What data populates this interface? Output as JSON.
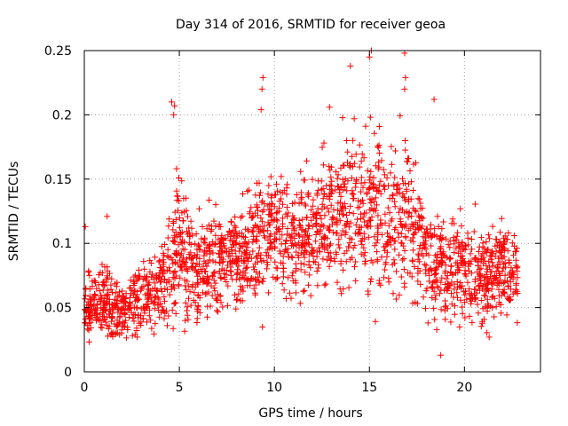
{
  "chart_data": {
    "type": "scatter",
    "title": "Day 314 of 2016, SRMTID for receiver geoa",
    "xlabel": "GPS time / hours",
    "ylabel": "SRMTID / TECUs",
    "xlim": [
      0,
      24
    ],
    "ylim": [
      0,
      0.25
    ],
    "xticks": [
      0,
      5,
      10,
      15,
      20
    ],
    "xtick_labels": [
      "0",
      "5",
      "10",
      "15",
      "20"
    ],
    "yticks": [
      0,
      0.05,
      0.1,
      0.15,
      0.2,
      0.25
    ],
    "ytick_labels": [
      "0",
      "0.05",
      "0.1",
      "0.15",
      "0.2",
      "0.25"
    ],
    "grid": true,
    "marker": "+",
    "marker_color": "#ff0000",
    "x_extent": [
      0,
      22.8
    ],
    "approx_point_count": 2200,
    "trend": {
      "hours": [
        0,
        1,
        2,
        3,
        4,
        5,
        6,
        7,
        8,
        9,
        10,
        11,
        12,
        13,
        14,
        15,
        16,
        17,
        18,
        19,
        20,
        21,
        22,
        22.8
      ],
      "median": [
        0.05,
        0.055,
        0.045,
        0.06,
        0.065,
        0.1,
        0.075,
        0.085,
        0.09,
        0.1,
        0.11,
        0.1,
        0.11,
        0.12,
        0.125,
        0.13,
        0.12,
        0.125,
        0.09,
        0.075,
        0.085,
        0.07,
        0.08,
        0.075
      ],
      "spread": [
        0.015,
        0.02,
        0.015,
        0.02,
        0.02,
        0.035,
        0.025,
        0.025,
        0.025,
        0.03,
        0.03,
        0.03,
        0.03,
        0.035,
        0.04,
        0.045,
        0.04,
        0.045,
        0.03,
        0.025,
        0.025,
        0.025,
        0.025,
        0.02
      ]
    },
    "highlights": [
      {
        "x": 0.05,
        "y": 0.113
      },
      {
        "x": 1.2,
        "y": 0.121
      },
      {
        "x": 4.6,
        "y": 0.21
      },
      {
        "x": 4.75,
        "y": 0.207
      },
      {
        "x": 4.7,
        "y": 0.2
      },
      {
        "x": 9.4,
        "y": 0.229
      },
      {
        "x": 9.35,
        "y": 0.22
      },
      {
        "x": 9.3,
        "y": 0.204
      },
      {
        "x": 14.0,
        "y": 0.238
      },
      {
        "x": 15.0,
        "y": 0.245
      },
      {
        "x": 15.1,
        "y": 0.25
      },
      {
        "x": 16.85,
        "y": 0.248
      },
      {
        "x": 16.9,
        "y": 0.229
      },
      {
        "x": 16.85,
        "y": 0.22
      },
      {
        "x": 18.4,
        "y": 0.212
      },
      {
        "x": 18.75,
        "y": 0.013
      },
      {
        "x": 21.3,
        "y": 0.027
      },
      {
        "x": 12.9,
        "y": 0.206
      },
      {
        "x": 14.2,
        "y": 0.197
      }
    ]
  }
}
